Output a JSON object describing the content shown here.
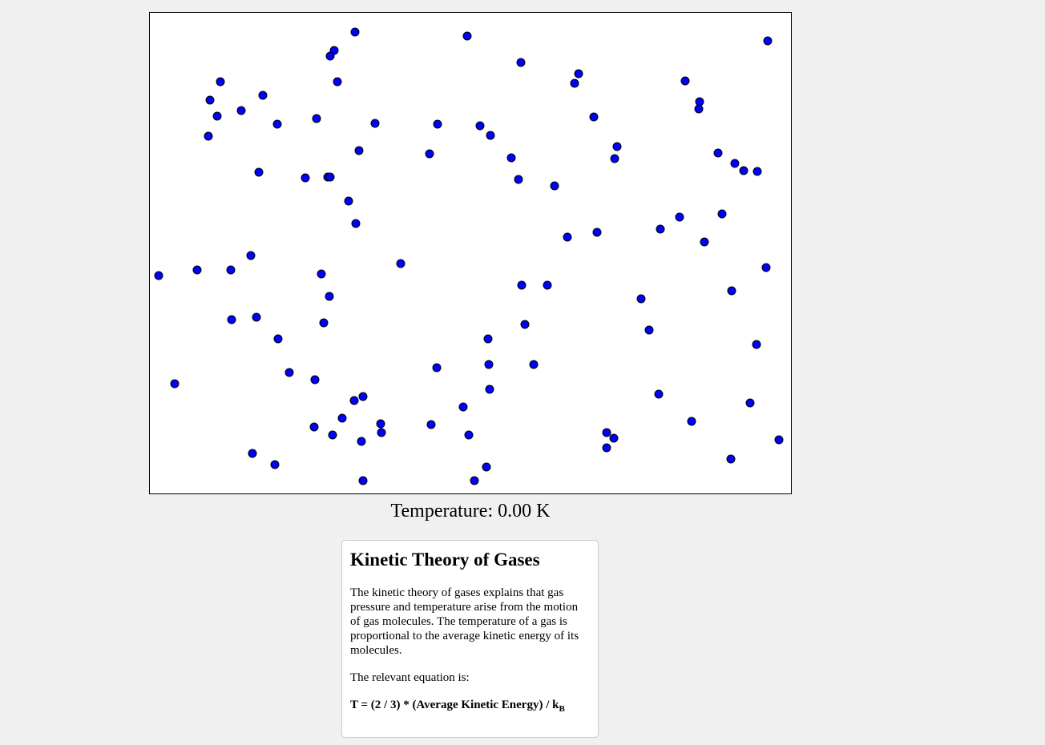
{
  "temperature": {
    "label": "Temperature: ",
    "value": "0.00",
    "unit": " K"
  },
  "info": {
    "title": "Kinetic Theory of Gases",
    "paragraph": "The kinetic theory of gases explains that gas pressure and temperature arise from the motion of gas molecules. The temperature of a gas is proportional to the average kinetic energy of its molecules.",
    "equation_intro": "The relevant equation is:",
    "equation_main": "T = (2 / 3) * (Average Kinetic Energy) / k",
    "equation_sub": "B"
  },
  "colors": {
    "particle_fill": "#0000ff",
    "particle_stroke": "#000000",
    "canvas_background": "#ffffff",
    "page_background": "#f0f0f0"
  }
}
